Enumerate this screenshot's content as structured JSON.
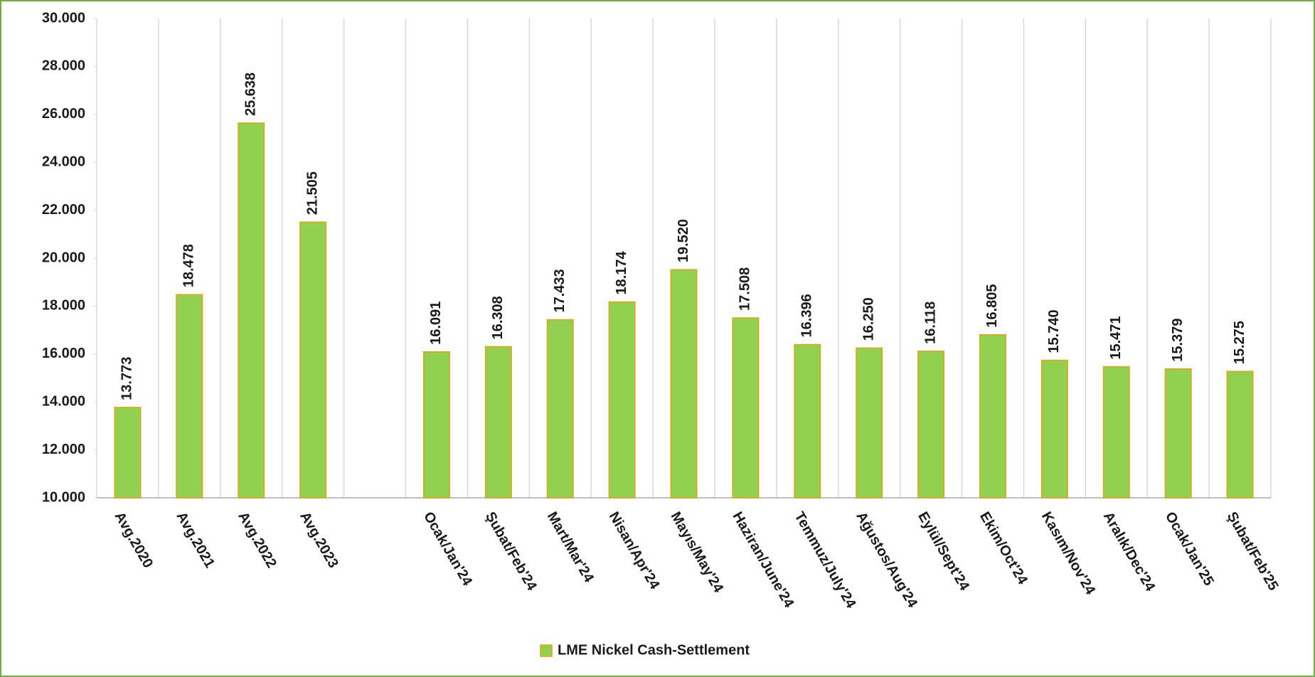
{
  "chart_data": {
    "type": "bar",
    "categories": [
      "Avg.2020",
      "Avg.2021",
      "Avg.2022",
      "Avg.2023",
      null,
      "Ocak/Jan'24",
      "Şubat/Feb'24",
      "Mart/Mar'24",
      "Nisan/Apr'24",
      "Mayıs/May'24",
      "Haziran/June'24",
      "Temmuz/July'24",
      "Ağustos/Aug'24",
      "Eylül/Sept'24",
      "Ekim/Oct'24",
      "Kasım/Nov'24",
      "Aralık/Dec'24",
      "Ocak/Jan'25",
      "Şubat/Feb'25"
    ],
    "series": [
      {
        "name": "LME Nickel Cash-Settlement",
        "color": "#92d050",
        "values": [
          13773,
          18478,
          25638,
          21505,
          null,
          16091,
          16308,
          17433,
          18174,
          19520,
          17508,
          16396,
          16250,
          16118,
          16805,
          15740,
          15471,
          15379,
          15275
        ],
        "value_labels": [
          "13.773",
          "18.478",
          "25.638",
          "21.505",
          null,
          "16.091",
          "16.308",
          "17.433",
          "18.174",
          "19.520",
          "17.508",
          "16.396",
          "16.250",
          "16.118",
          "16.805",
          "15.740",
          "15.471",
          "15.379",
          "15.275"
        ]
      }
    ],
    "ylim": [
      10000,
      30000
    ],
    "yticks": [
      {
        "value": 10000,
        "label": "10.000"
      },
      {
        "value": 12000,
        "label": "12.000"
      },
      {
        "value": 14000,
        "label": "14.000"
      },
      {
        "value": 16000,
        "label": "16.000"
      },
      {
        "value": 18000,
        "label": "18.000"
      },
      {
        "value": 20000,
        "label": "20.000"
      },
      {
        "value": 22000,
        "label": "22.000"
      },
      {
        "value": 24000,
        "label": "24.000"
      },
      {
        "value": 26000,
        "label": "26.000"
      },
      {
        "value": 28000,
        "label": "28.000"
      },
      {
        "value": 30000,
        "label": "30.000"
      }
    ],
    "legend": "bottom"
  }
}
